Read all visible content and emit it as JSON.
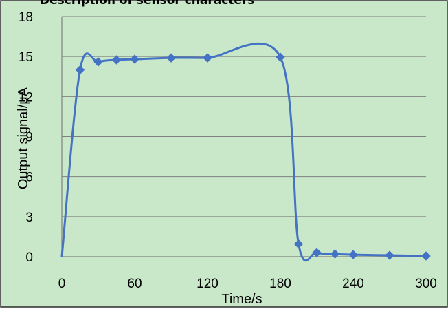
{
  "chart_data": {
    "type": "line",
    "title": "Description of sensor characters",
    "xlabel": "Time/s",
    "ylabel": "Output signal/μA",
    "xlim": [
      0,
      300
    ],
    "ylim": [
      0,
      18
    ],
    "xticks": [
      "0",
      "60",
      "120",
      "180",
      "240",
      "300"
    ],
    "yticks": [
      "0",
      "3",
      "6",
      "9",
      "12",
      "15",
      "18"
    ],
    "grid": true,
    "legend": "none",
    "series": [
      {
        "x": [
          0,
          15,
          30,
          45,
          60,
          90,
          120,
          180,
          195,
          210,
          225,
          240,
          270,
          300
        ],
        "values": [
          0,
          14.0,
          14.6,
          14.75,
          14.8,
          14.9,
          14.9,
          14.95,
          0.95,
          0.3,
          0.2,
          0.15,
          0.1,
          0.05
        ]
      }
    ]
  },
  "colors": {
    "plot_background": "#c8e8c9",
    "outer_background": "#ffffff",
    "border": "#2b2b2b",
    "gridline": "#808080",
    "series": "#4472c4"
  }
}
